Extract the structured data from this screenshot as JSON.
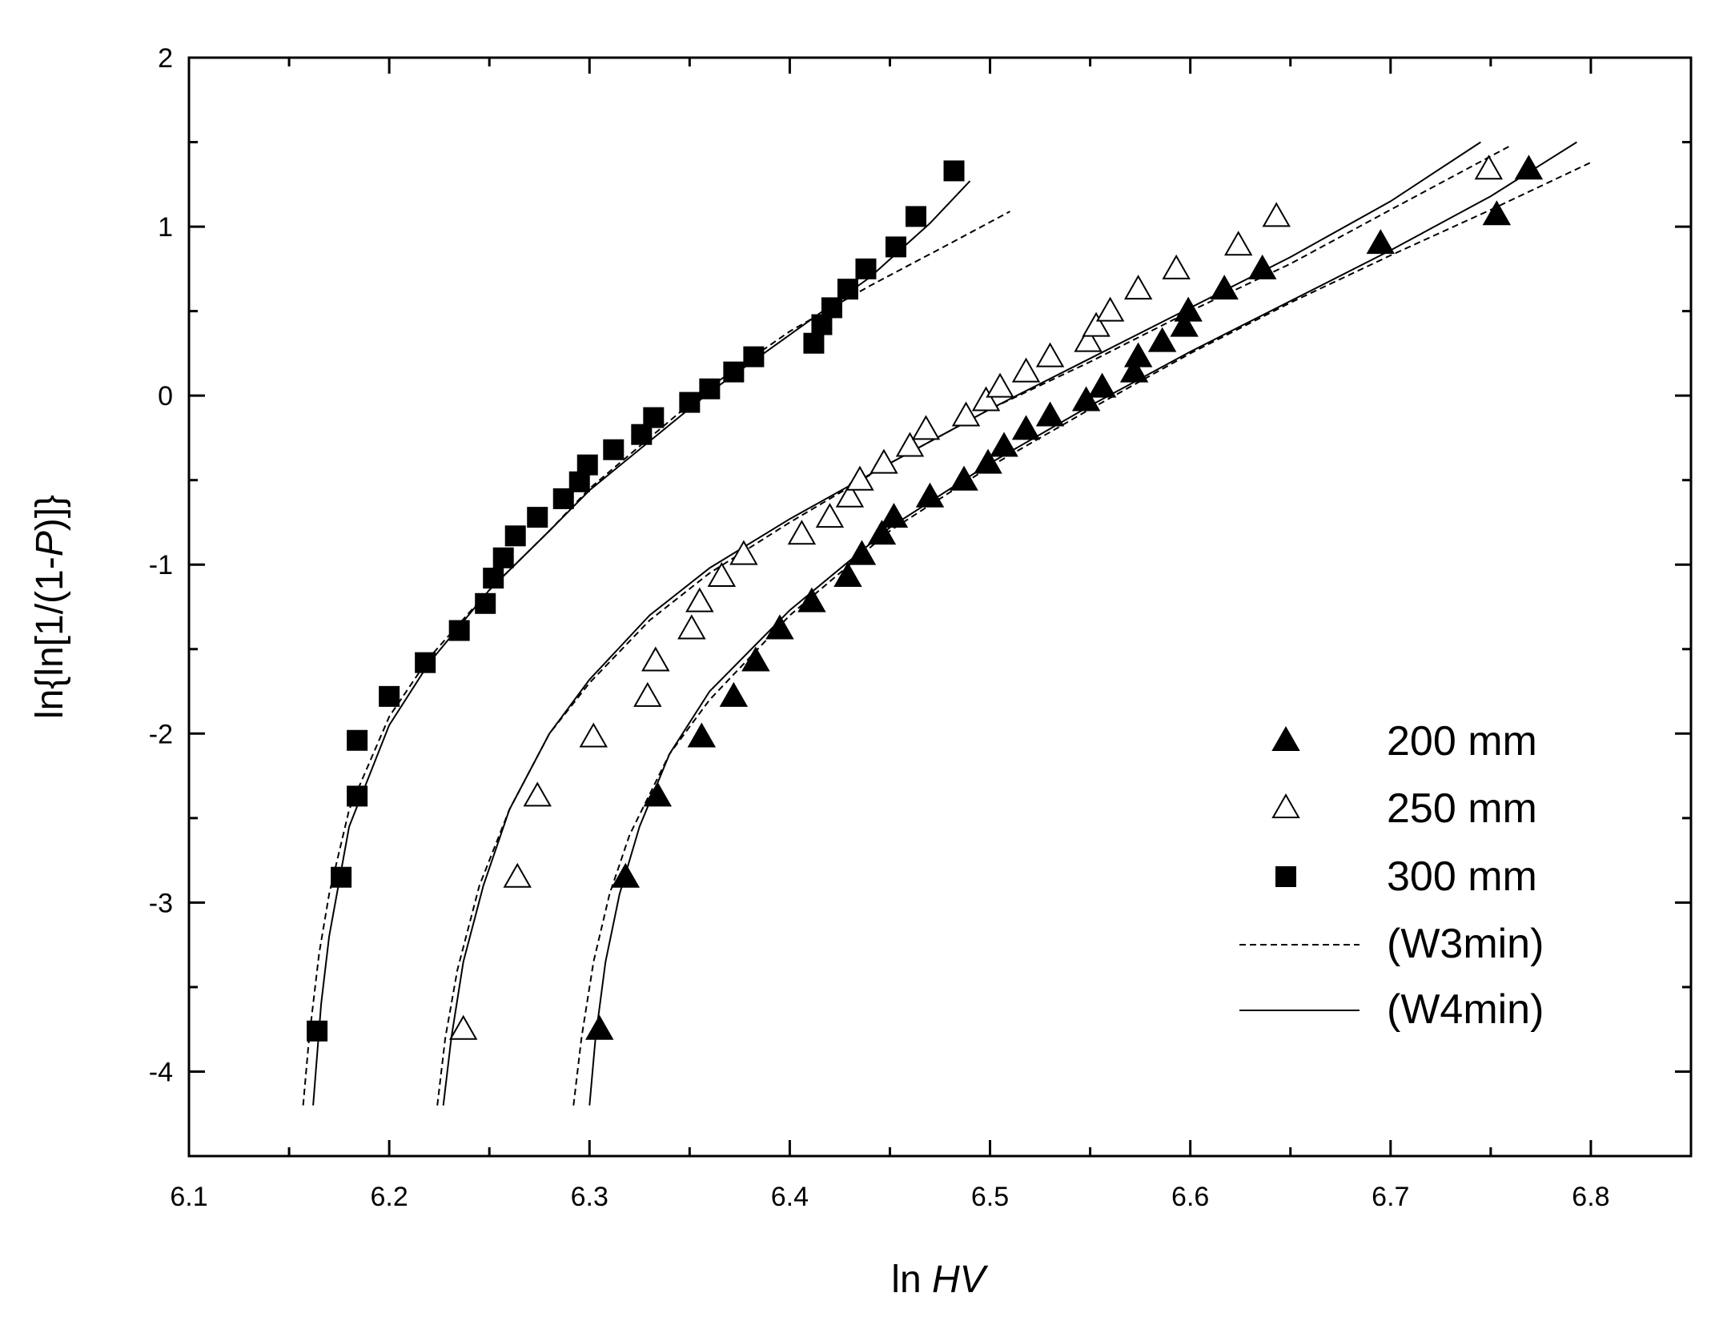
{
  "chart_data": {
    "type": "scatter",
    "xlabel_prefix": "ln ",
    "xlabel_italic": "HV",
    "ylabel_prefix": "ln{ln[1/(1-",
    "ylabel_italic": "P",
    "ylabel_suffix": ")]}",
    "xlim": [
      6.1,
      6.85
    ],
    "ylim": [
      -4.5,
      2
    ],
    "xticks": [
      "6.1",
      "6.2",
      "6.3",
      "6.4",
      "6.5",
      "6.6",
      "6.7",
      "6.8"
    ],
    "yticks": [
      "-4",
      "-3",
      "-2",
      "-1",
      "0",
      "1",
      "2"
    ],
    "grid": false,
    "legend_position": "bottom-right",
    "series": [
      {
        "name": "200 mm",
        "marker": "filled-triangle",
        "x": [
          6.305,
          6.318,
          6.334,
          6.356,
          6.372,
          6.383,
          6.395,
          6.411,
          6.429,
          6.436,
          6.446,
          6.452,
          6.47,
          6.487,
          6.499,
          6.507,
          6.518,
          6.53,
          6.548,
          6.556,
          6.572,
          6.574,
          6.586,
          6.597,
          6.599,
          6.617,
          6.636,
          6.695,
          6.753,
          6.769
        ],
        "y": [
          -3.75,
          -2.85,
          -2.37,
          -2.02,
          -1.78,
          -1.57,
          -1.38,
          -1.22,
          -1.07,
          -0.94,
          -0.82,
          -0.72,
          -0.6,
          -0.5,
          -0.4,
          -0.3,
          -0.2,
          -0.12,
          -0.03,
          0.05,
          0.14,
          0.23,
          0.32,
          0.41,
          0.5,
          0.63,
          0.75,
          0.9,
          1.07,
          1.34
        ]
      },
      {
        "name": "250 mm",
        "marker": "open-triangle",
        "x": [
          6.237,
          6.264,
          6.274,
          6.302,
          6.329,
          6.333,
          6.351,
          6.355,
          6.366,
          6.377,
          6.406,
          6.42,
          6.43,
          6.435,
          6.447,
          6.46,
          6.468,
          6.488,
          6.498,
          6.505,
          6.518,
          6.53,
          6.549,
          6.553,
          6.56,
          6.574,
          6.593,
          6.624,
          6.643,
          6.749
        ],
        "y": [
          -3.75,
          -2.85,
          -2.37,
          -2.02,
          -1.78,
          -1.57,
          -1.38,
          -1.22,
          -1.07,
          -0.94,
          -0.82,
          -0.72,
          -0.6,
          -0.5,
          -0.4,
          -0.3,
          -0.2,
          -0.12,
          -0.03,
          0.05,
          0.14,
          0.23,
          0.32,
          0.41,
          0.5,
          0.63,
          0.75,
          0.89,
          1.06,
          1.34
        ]
      },
      {
        "name": "300 mm",
        "marker": "filled-square",
        "x": [
          6.164,
          6.176,
          6.184,
          6.184,
          6.2,
          6.218,
          6.235,
          6.248,
          6.252,
          6.257,
          6.263,
          6.274,
          6.287,
          6.295,
          6.299,
          6.312,
          6.326,
          6.332,
          6.35,
          6.36,
          6.372,
          6.382,
          6.412,
          6.416,
          6.421,
          6.429,
          6.438,
          6.453,
          6.463,
          6.482
        ],
        "y": [
          -3.76,
          -2.85,
          -2.37,
          -2.04,
          -1.78,
          -1.58,
          -1.39,
          -1.23,
          -1.08,
          -0.96,
          -0.83,
          -0.72,
          -0.61,
          -0.51,
          -0.41,
          -0.32,
          -0.23,
          -0.13,
          -0.04,
          0.04,
          0.14,
          0.23,
          0.31,
          0.42,
          0.52,
          0.63,
          0.75,
          0.88,
          1.06,
          1.33
        ]
      }
    ],
    "fits": [
      {
        "name": "(W3min)",
        "style": "dashed",
        "curves": [
          {
            "x": [
              6.157,
              6.16,
              6.165,
              6.17,
              6.18,
              6.2,
              6.22,
              6.25,
              6.28,
              6.3,
              6.33,
              6.36,
              6.4,
              6.44,
              6.48,
              6.51
            ],
            "y": [
              -4.2,
              -3.8,
              -3.3,
              -2.95,
              -2.45,
              -1.9,
              -1.55,
              -1.15,
              -0.8,
              -0.55,
              -0.25,
              0.05,
              0.38,
              0.65,
              0.9,
              1.09
            ]
          },
          {
            "x": [
              6.224,
              6.228,
              6.234,
              6.245,
              6.26,
              6.28,
              6.3,
              6.33,
              6.36,
              6.4,
              6.45,
              6.5,
              6.55,
              6.6,
              6.65,
              6.7,
              6.76
            ],
            "y": [
              -4.2,
              -3.8,
              -3.4,
              -2.9,
              -2.45,
              -2.0,
              -1.7,
              -1.33,
              -1.05,
              -0.75,
              -0.4,
              -0.08,
              0.2,
              0.5,
              0.78,
              1.1,
              1.48
            ]
          },
          {
            "x": [
              6.292,
              6.296,
              6.302,
              6.31,
              6.32,
              6.34,
              6.36,
              6.4,
              6.45,
              6.5,
              6.55,
              6.6,
              6.65,
              6.7,
              6.75,
              6.8
            ],
            "y": [
              -4.2,
              -3.8,
              -3.35,
              -2.95,
              -2.6,
              -2.12,
              -1.8,
              -1.3,
              -0.8,
              -0.42,
              -0.08,
              0.25,
              0.55,
              0.83,
              1.1,
              1.38
            ]
          }
        ]
      },
      {
        "name": "(W4min)",
        "style": "solid",
        "curves": [
          {
            "x": [
              6.162,
              6.166,
              6.17,
              6.18,
              6.2,
              6.22,
              6.25,
              6.28,
              6.3,
              6.33,
              6.36,
              6.4,
              6.44,
              6.47,
              6.49
            ],
            "y": [
              -4.2,
              -3.6,
              -3.2,
              -2.55,
              -1.95,
              -1.58,
              -1.15,
              -0.8,
              -0.56,
              -0.27,
              0.02,
              0.36,
              0.7,
              1.02,
              1.27
            ]
          },
          {
            "x": [
              6.227,
              6.231,
              6.237,
              6.247,
              6.26,
              6.28,
              6.3,
              6.33,
              6.36,
              6.4,
              6.45,
              6.5,
              6.55,
              6.6,
              6.65,
              6.7,
              6.745
            ],
            "y": [
              -4.2,
              -3.8,
              -3.35,
              -2.9,
              -2.45,
              -2.0,
              -1.68,
              -1.3,
              -1.02,
              -0.73,
              -0.4,
              -0.08,
              0.22,
              0.52,
              0.82,
              1.15,
              1.5
            ]
          },
          {
            "x": [
              6.3,
              6.303,
              6.308,
              6.315,
              6.325,
              6.34,
              6.36,
              6.4,
              6.45,
              6.5,
              6.55,
              6.6,
              6.65,
              6.7,
              6.75,
              6.793
            ],
            "y": [
              -4.2,
              -3.8,
              -3.35,
              -2.95,
              -2.55,
              -2.12,
              -1.75,
              -1.27,
              -0.78,
              -0.4,
              -0.06,
              0.26,
              0.56,
              0.86,
              1.18,
              1.5
            ]
          }
        ]
      }
    ]
  }
}
